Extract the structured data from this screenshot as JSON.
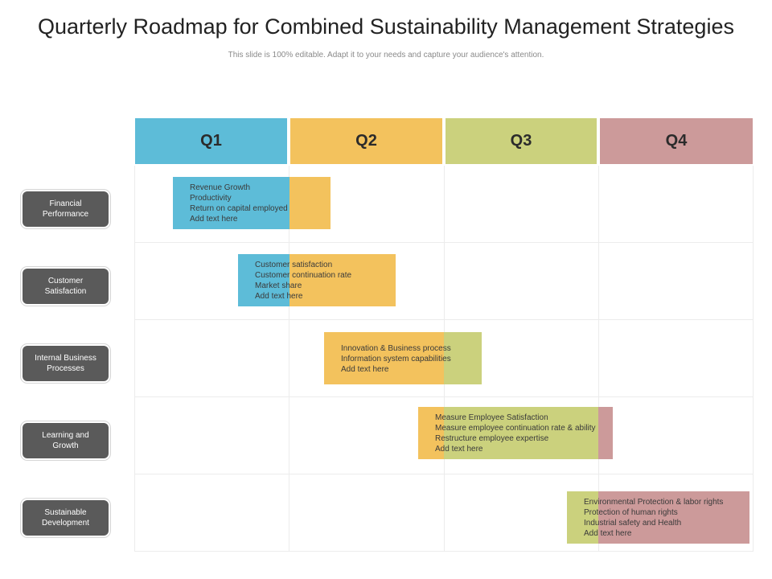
{
  "title": "Quarterly Roadmap for Combined Sustainability Management Strategies",
  "subtitle": "This slide is 100% editable. Adapt it to your needs and capture your audience's attention.",
  "colors": {
    "q1": "#5dbcd8",
    "q2": "#f3c25d",
    "q3": "#cbd17d",
    "q4": "#cc9a9a",
    "label_bg": "#5a5a5a"
  },
  "quarters": [
    {
      "label": "Q1"
    },
    {
      "label": "Q2"
    },
    {
      "label": "Q3"
    },
    {
      "label": "Q4"
    }
  ],
  "rows": [
    {
      "label_lines": [
        "Financial",
        "Performance"
      ],
      "lines": [
        "Revenue Growth",
        "Productivity",
        "Return on capital employed",
        "Add text here"
      ]
    },
    {
      "label_lines": [
        "Customer",
        "Satisfaction"
      ],
      "lines": [
        "Customer satisfaction",
        "Customer continuation rate",
        "Market share",
        "Add text here"
      ]
    },
    {
      "label_lines": [
        "Internal Business",
        "Processes"
      ],
      "lines": [
        "Innovation & Business process",
        "Information  system capabilities",
        "Add text here"
      ]
    },
    {
      "label_lines": [
        "Learning and",
        "Growth"
      ],
      "lines": [
        "Measure Employee Satisfaction",
        "Measure employee continuation rate & ability",
        "Restructure employee expertise",
        "Add text here"
      ]
    },
    {
      "label_lines": [
        "Sustainable",
        "Development"
      ],
      "lines": [
        "Environmental Protection & labor rights",
        "Protection of human rights",
        "Industrial safety and Health",
        "Add text here"
      ]
    }
  ]
}
